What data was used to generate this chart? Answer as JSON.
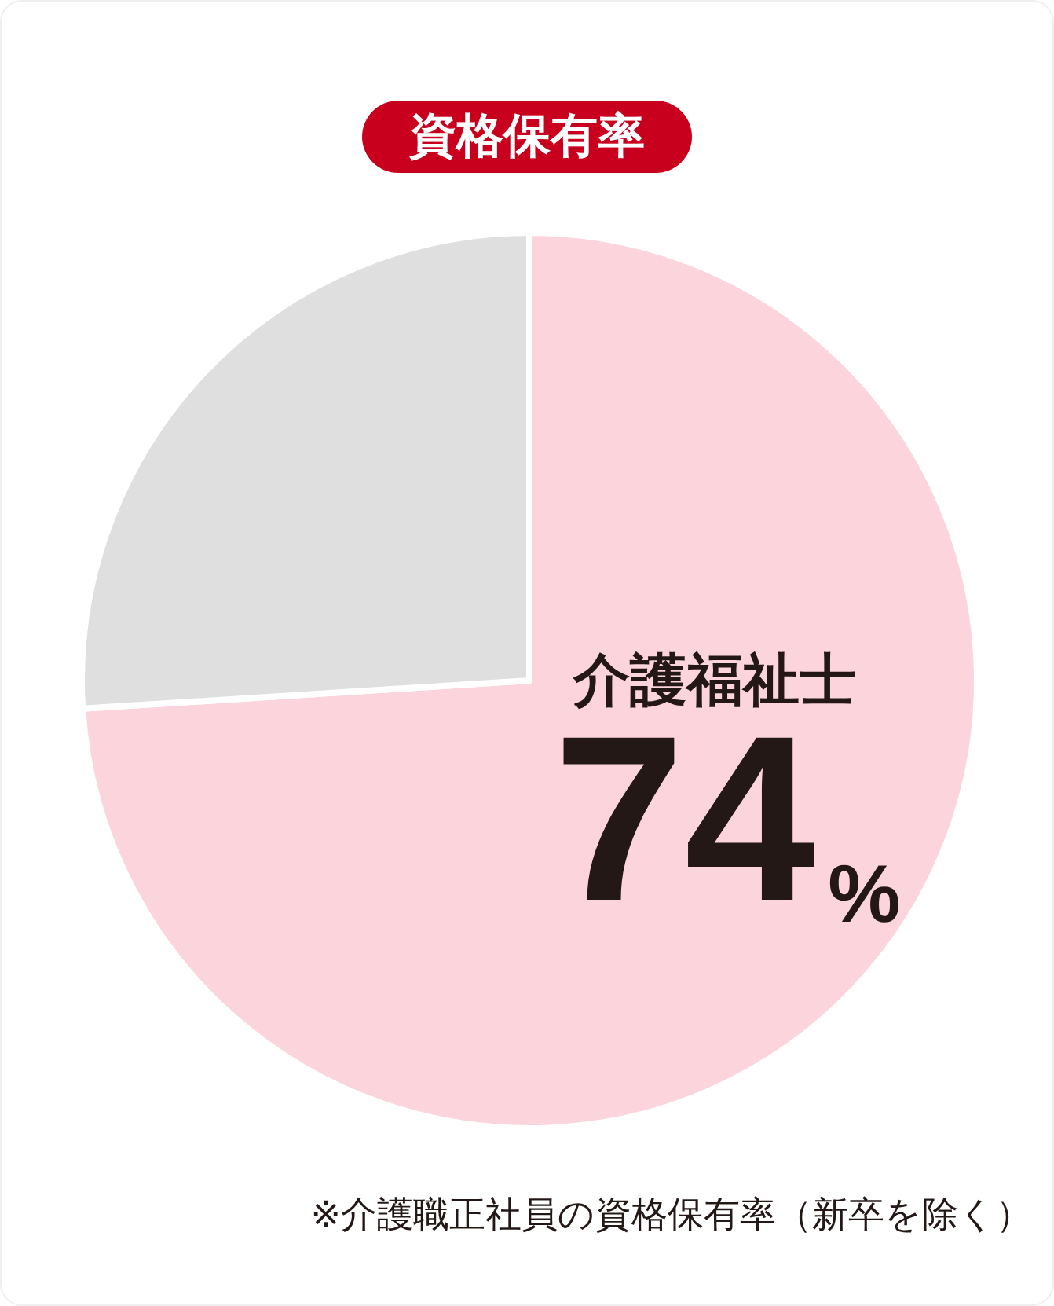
{
  "chart_data": {
    "type": "pie",
    "title": "資格保有率",
    "categories": [
      "介護福祉士",
      null
    ],
    "values": [
      74,
      26
    ],
    "colors": [
      "#fcd4dc",
      "#dfdfdf"
    ],
    "value_labels": [
      "74%",
      null
    ],
    "annotations": [
      "※介護職正社員の資格保有率（新卒を除く）"
    ]
  }
}
